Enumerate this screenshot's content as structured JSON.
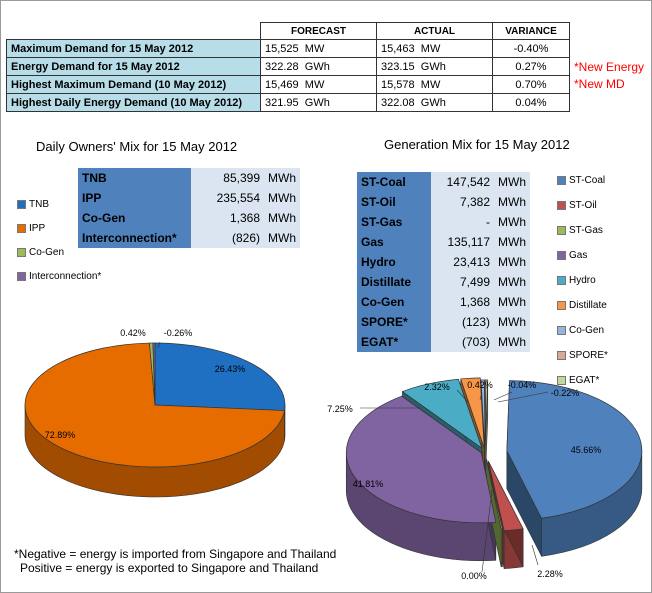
{
  "summary": {
    "headers": [
      "FORECAST",
      "ACTUAL",
      "VARIANCE"
    ],
    "rows": [
      {
        "label": "Maximum Demand for 15 May 2012",
        "forecast": "15,525",
        "forecast_unit": "MW",
        "actual": "15,463",
        "actual_unit": "MW",
        "variance": "-0.40%"
      },
      {
        "label": "Energy Demand for 15 May 2012",
        "forecast": "322.28",
        "forecast_unit": "GWh",
        "actual": "323.15",
        "actual_unit": "GWh",
        "variance": "0.27%"
      },
      {
        "label": "Highest Maximum Demand (10 May 2012)",
        "forecast": "15,469",
        "forecast_unit": "MW",
        "actual": "15,578",
        "actual_unit": "MW",
        "variance": "0.70%"
      },
      {
        "label": "Highest Daily Energy Demand (10 May 2012)",
        "forecast": "321.95",
        "forecast_unit": "GWh",
        "actual": "322.08",
        "actual_unit": "GWh",
        "variance": "0.04%"
      }
    ],
    "notes": [
      "*New Energy",
      "*New MD"
    ]
  },
  "owners": {
    "title": "Daily Owners' Mix for 15 May 2012",
    "table": [
      {
        "name": "TNB",
        "value": "85,399",
        "unit": "MWh"
      },
      {
        "name": "IPP",
        "value": "235,554",
        "unit": "MWh"
      },
      {
        "name": "Co-Gen",
        "value": "1,368",
        "unit": "MWh"
      },
      {
        "name": "Interconnection*",
        "value": "(826)",
        "unit": "MWh"
      }
    ]
  },
  "generation": {
    "title": "Generation Mix for 15 May 2012",
    "table": [
      {
        "name": "ST-Coal",
        "value": "147,542",
        "unit": "MWh"
      },
      {
        "name": "ST-Oil",
        "value": "7,382",
        "unit": "MWh"
      },
      {
        "name": "ST-Gas",
        "value": "-",
        "unit": "MWh"
      },
      {
        "name": "Gas",
        "value": "135,117",
        "unit": "MWh"
      },
      {
        "name": "Hydro",
        "value": "23,413",
        "unit": "MWh"
      },
      {
        "name": "Distillate",
        "value": "7,499",
        "unit": "MWh"
      },
      {
        "name": "Co-Gen",
        "value": "1,368",
        "unit": "MWh"
      },
      {
        "name": "SPORE*",
        "value": "(123)",
        "unit": "MWh"
      },
      {
        "name": "EGAT*",
        "value": "(703)",
        "unit": "MWh"
      }
    ]
  },
  "chart_data": [
    {
      "type": "pie",
      "title": "Daily Owners' Mix for 15 May 2012",
      "categories": [
        "TNB",
        "IPP",
        "Co-Gen",
        "Interconnection*"
      ],
      "values": [
        26.43,
        72.89,
        0.42,
        -0.26
      ],
      "labels": [
        "26.43%",
        "72.89%",
        "0.42%",
        "-0.26%"
      ],
      "colors": [
        "#1f6fc2",
        "#e66c00",
        "#9bbb59",
        "#8064a2"
      ],
      "legend": "left"
    },
    {
      "type": "pie",
      "title": "Generation Mix for 15 May 2012",
      "categories": [
        "ST-Coal",
        "ST-Oil",
        "ST-Gas",
        "Gas",
        "Hydro",
        "Distillate",
        "Co-Gen",
        "SPORE*",
        "EGAT*"
      ],
      "values": [
        45.66,
        2.28,
        0.0,
        41.81,
        7.25,
        2.32,
        0.42,
        -0.04,
        -0.22
      ],
      "labels": [
        "45.66%",
        "2.28%",
        "0.00%",
        "41.81%",
        "7.25%",
        "2.32%",
        "0.42%",
        "-0.04%",
        "-0.22%"
      ],
      "colors": [
        "#4f81bd",
        "#c0504d",
        "#9bbb59",
        "#8064a2",
        "#4bacc6",
        "#f79646",
        "#93b4dc",
        "#d8a898",
        "#c4d79b"
      ],
      "legend": "right",
      "exploded": true
    }
  ],
  "footnote": {
    "line1": "*Negative = energy is imported from Singapore and Thailand",
    "line2": "Positive = energy is exported to Singapore and Thailand"
  }
}
